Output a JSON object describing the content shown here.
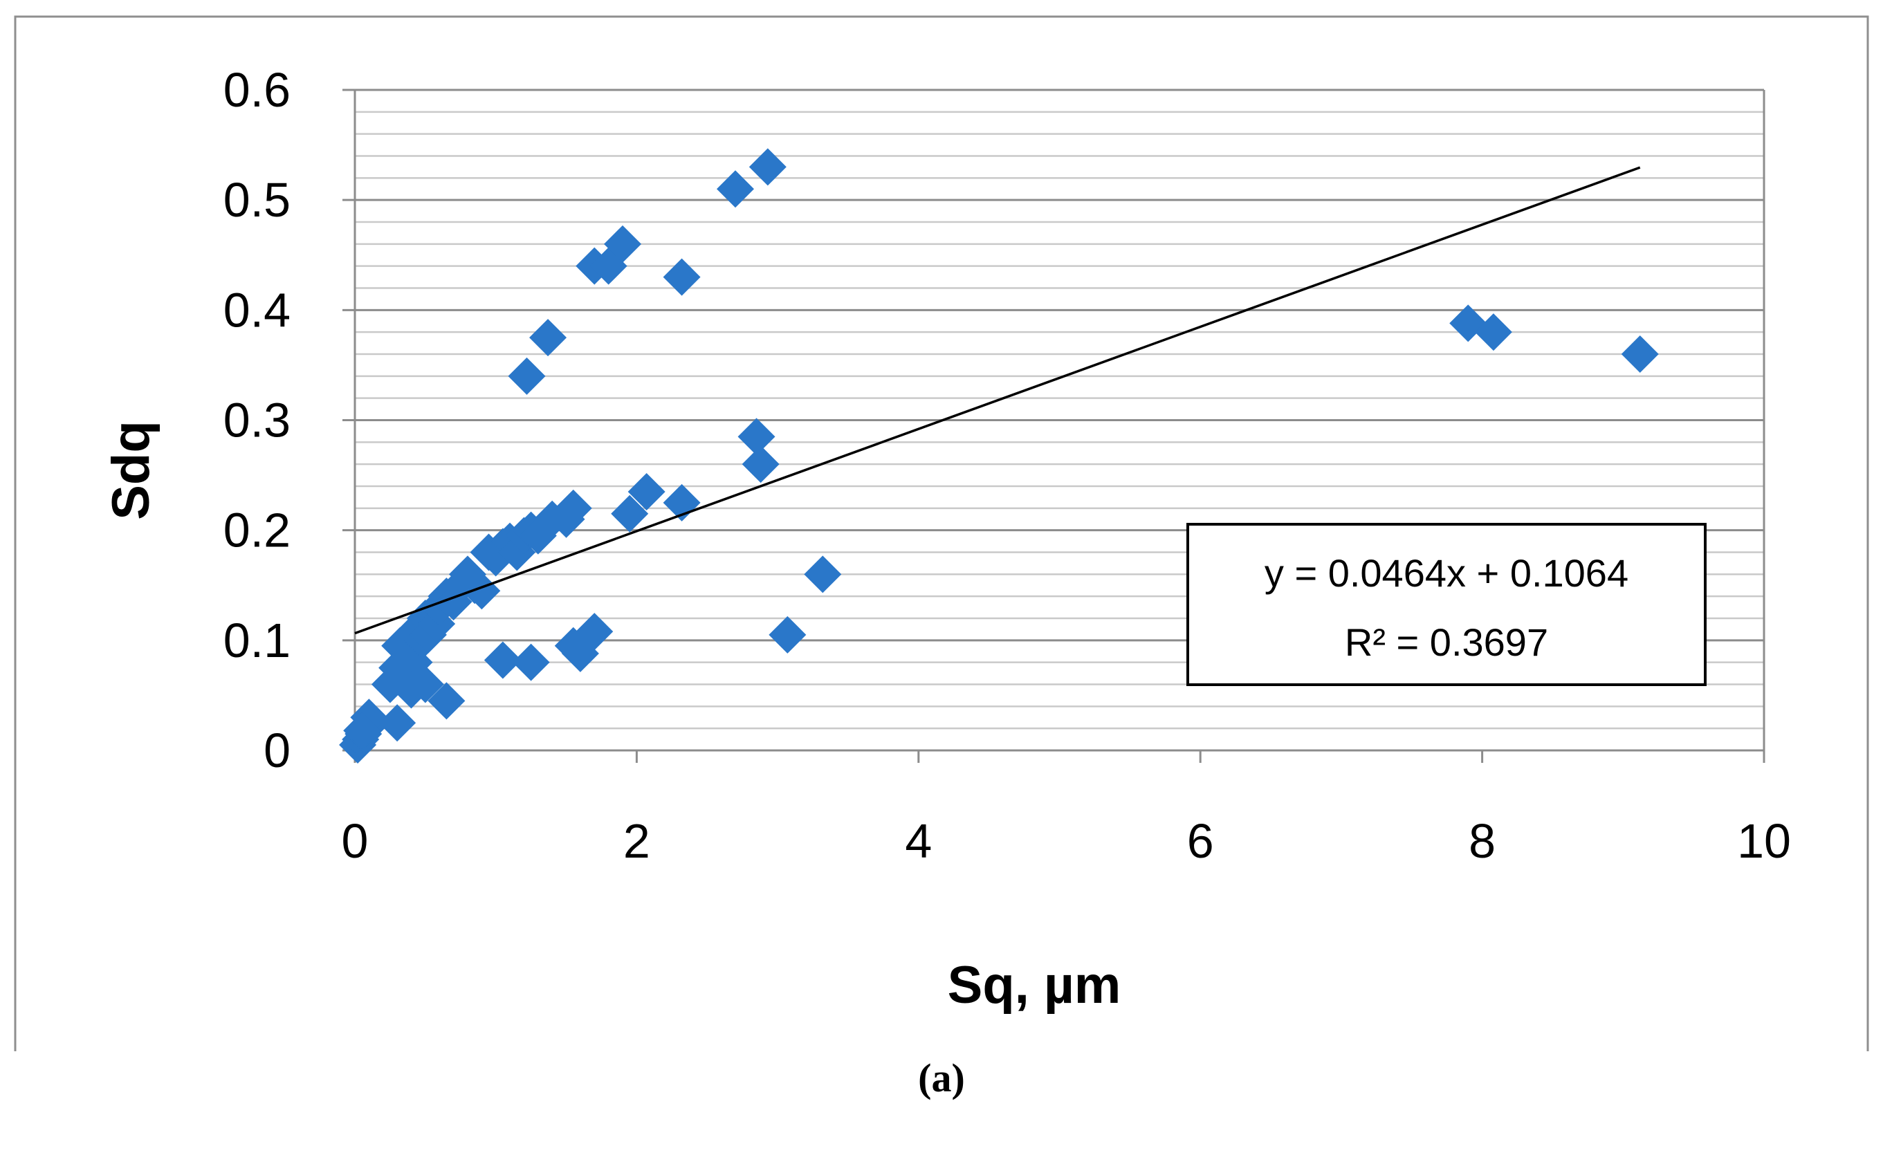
{
  "chart_data": {
    "type": "scatter",
    "title": "",
    "xlabel": "Sq, µm",
    "ylabel": "Sdq",
    "xlim": [
      0,
      10
    ],
    "ylim": [
      0,
      0.6
    ],
    "x_ticks": [
      "0",
      "2",
      "4",
      "6",
      "8",
      "10"
    ],
    "y_ticks": [
      "0",
      "0.1",
      "0.2",
      "0.3",
      "0.4",
      "0.5",
      "0.6"
    ],
    "grid": {
      "major_y": true,
      "minor_y": true,
      "minor_step": 0.02
    },
    "marker_color": "#2a77c9",
    "series": [
      {
        "name": "Sdq",
        "x": [
          0.02,
          0.04,
          0.06,
          0.08,
          0.1,
          0.05,
          0.25,
          0.3,
          0.32,
          0.35,
          0.38,
          0.4,
          0.42,
          0.45,
          0.48,
          0.5,
          0.52,
          0.55,
          0.58,
          0.6,
          0.65,
          0.7,
          0.75,
          0.8,
          0.85,
          0.9,
          0.95,
          1.0,
          1.05,
          1.1,
          1.15,
          1.2,
          1.25,
          1.3,
          1.4,
          1.5,
          1.55,
          0.3,
          0.4,
          0.5,
          0.65,
          1.05,
          1.25,
          1.55,
          1.6,
          1.7,
          1.22,
          1.37,
          1.7,
          1.8,
          1.9,
          2.32,
          2.7,
          2.93,
          1.95,
          2.07,
          2.32,
          2.85,
          2.88,
          3.07,
          3.32,
          7.9,
          8.08,
          9.12
        ],
        "y": [
          0.005,
          0.01,
          0.015,
          0.02,
          0.03,
          0.018,
          0.06,
          0.075,
          0.095,
          0.07,
          0.06,
          0.105,
          0.08,
          0.11,
          0.1,
          0.12,
          0.105,
          0.125,
          0.115,
          0.13,
          0.14,
          0.135,
          0.15,
          0.16,
          0.15,
          0.145,
          0.18,
          0.175,
          0.185,
          0.19,
          0.18,
          0.195,
          0.2,
          0.195,
          0.21,
          0.21,
          0.22,
          0.025,
          0.055,
          0.06,
          0.045,
          0.082,
          0.08,
          0.095,
          0.088,
          0.108,
          0.34,
          0.375,
          0.44,
          0.44,
          0.46,
          0.43,
          0.51,
          0.53,
          0.215,
          0.235,
          0.225,
          0.285,
          0.26,
          0.105,
          0.16,
          0.388,
          0.38,
          0.36
        ]
      }
    ],
    "trendline": {
      "type": "linear",
      "slope": 0.0464,
      "intercept": 0.1064,
      "x_range": [
        0,
        9.12
      ]
    },
    "annotations": {
      "equation": "y = 0.0464x + 0.1064",
      "r_squared": "R² = 0.3697"
    }
  },
  "caption": "(a)"
}
